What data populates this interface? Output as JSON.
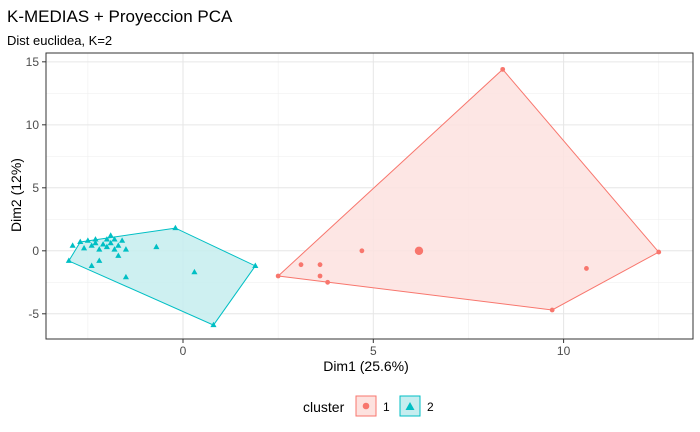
{
  "chart_data": {
    "type": "scatter",
    "title": "K-MEDIAS + Proyeccion PCA",
    "subtitle": "Dist euclidea, K=2",
    "xlabel": "Dim1 (25.6%)",
    "ylabel": "Dim2 (12%)",
    "xlim": [
      -3.6,
      13.4
    ],
    "ylim": [
      -7.0,
      15.7
    ],
    "xticks": [
      0,
      5,
      10
    ],
    "yticks": [
      -5,
      0,
      5,
      10,
      15
    ],
    "grid": true,
    "legend": {
      "title": "cluster",
      "position": "bottom"
    },
    "series": [
      {
        "name": "1",
        "color": "#F8766D",
        "fill": "#fde2df",
        "marker": "circle",
        "hull": [
          [
            2.5,
            -2.0
          ],
          [
            8.4,
            14.4
          ],
          [
            12.5,
            -0.1
          ],
          [
            9.7,
            -4.7
          ]
        ],
        "points": [
          [
            2.5,
            -2.0
          ],
          [
            3.1,
            -1.1
          ],
          [
            3.6,
            -1.1
          ],
          [
            3.6,
            -2.0
          ],
          [
            3.8,
            -2.5
          ],
          [
            4.7,
            0.0
          ],
          [
            8.4,
            14.4
          ],
          [
            9.7,
            -4.7
          ],
          [
            10.6,
            -1.4
          ],
          [
            12.5,
            -0.1
          ]
        ],
        "centroid": [
          6.2,
          0.0
        ]
      },
      {
        "name": "2",
        "color": "#00BFC4",
        "fill": "#c6edef",
        "marker": "triangle",
        "hull": [
          [
            -3.0,
            -0.8
          ],
          [
            -2.7,
            0.7
          ],
          [
            -0.2,
            1.8
          ],
          [
            1.9,
            -1.2
          ],
          [
            0.8,
            -5.9
          ]
        ],
        "points": [
          [
            -3.0,
            -0.8
          ],
          [
            -2.9,
            0.4
          ],
          [
            -2.7,
            0.7
          ],
          [
            -2.6,
            0.2
          ],
          [
            -2.5,
            0.8
          ],
          [
            -2.4,
            0.4
          ],
          [
            -2.3,
            0.6
          ],
          [
            -2.3,
            0.9
          ],
          [
            -2.2,
            0.1
          ],
          [
            -2.1,
            0.5
          ],
          [
            -2.0,
            0.9
          ],
          [
            -2.0,
            0.3
          ],
          [
            -1.9,
            1.2
          ],
          [
            -1.9,
            0.6
          ],
          [
            -1.8,
            0.1
          ],
          [
            -1.8,
            0.9
          ],
          [
            -1.7,
            0.4
          ],
          [
            -1.6,
            0.8
          ],
          [
            -1.5,
            0.1
          ],
          [
            -1.7,
            -0.4
          ],
          [
            -1.5,
            -2.1
          ],
          [
            -2.2,
            -0.8
          ],
          [
            -2.4,
            -1.2
          ],
          [
            -0.7,
            0.3
          ],
          [
            -0.2,
            1.8
          ],
          [
            0.3,
            -1.7
          ],
          [
            1.9,
            -1.2
          ],
          [
            0.8,
            -5.9
          ]
        ]
      }
    ]
  }
}
